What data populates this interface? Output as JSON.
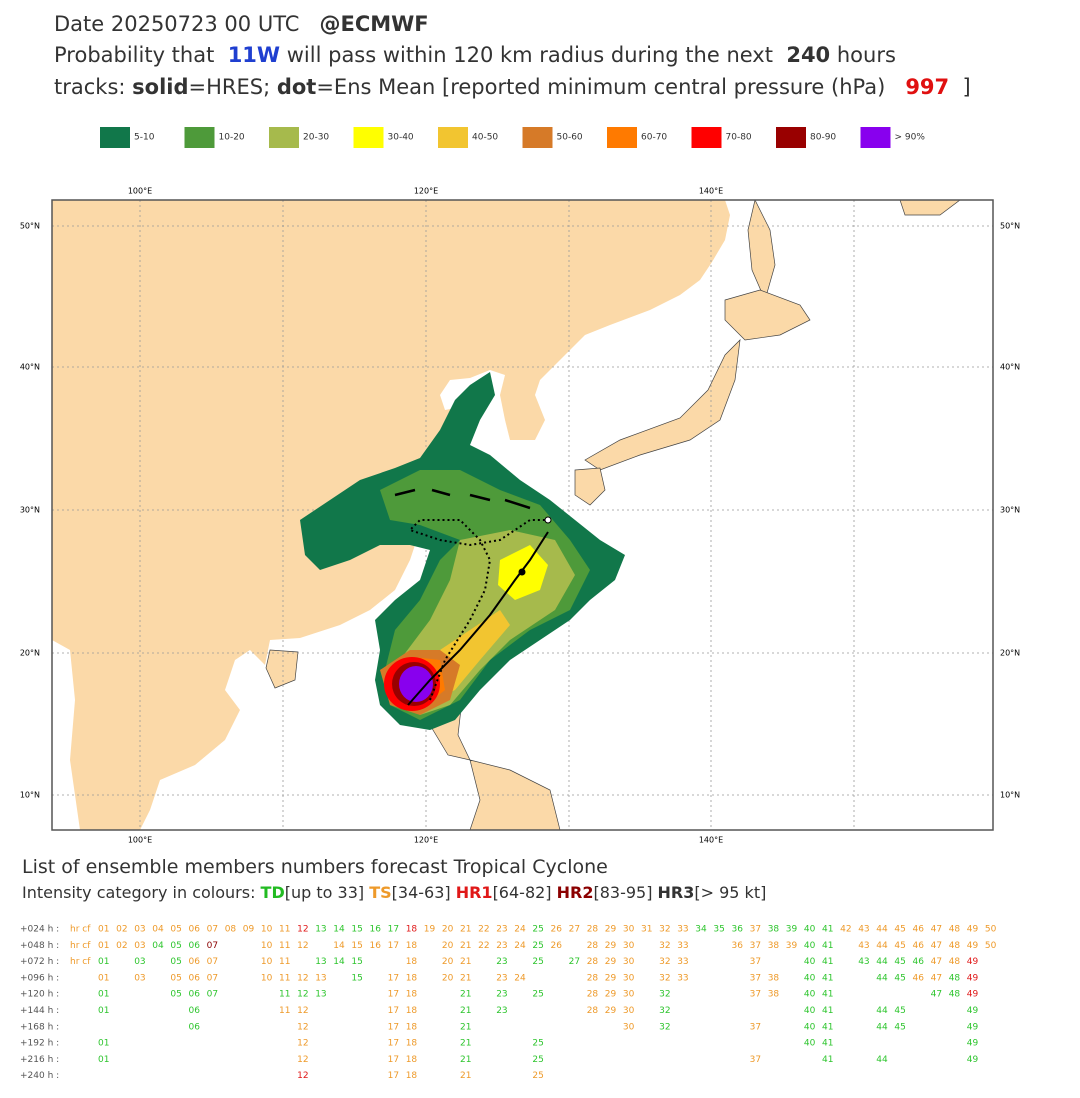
{
  "header": {
    "line1": [
      {
        "text": "Date 20250723 00 UTC   "
      },
      {
        "text": "@ECMWF",
        "bold": true
      }
    ],
    "line2": [
      {
        "text": "Probability that  "
      },
      {
        "text": "11W",
        "bold": true,
        "color": "#1f3fd0"
      },
      {
        "text": " will pass within 120 km radius during the next  "
      },
      {
        "text": "240",
        "bold": true
      },
      {
        "text": " hours"
      }
    ],
    "line3": [
      {
        "text": "tracks: "
      },
      {
        "text": "solid",
        "bold": true
      },
      {
        "text": "=HRES; "
      },
      {
        "text": "dot",
        "bold": true
      },
      {
        "text": "=Ens Mean [reported minimum central pressure (hPa)   "
      },
      {
        "text": "997",
        "bold": true,
        "color": "#e01010"
      },
      {
        "text": "  ]"
      }
    ]
  },
  "legend": [
    {
      "label": "5-10",
      "color": "#11774a"
    },
    {
      "label": "10-20",
      "color": "#4e9a3a"
    },
    {
      "label": "20-30",
      "color": "#a6ba4c"
    },
    {
      "label": "30-40",
      "color": "#ffff00"
    },
    {
      "label": "40-50",
      "color": "#f2c530"
    },
    {
      "label": "50-60",
      "color": "#d67a28"
    },
    {
      "label": "60-70",
      "color": "#ff7a00"
    },
    {
      "label": "70-80",
      "color": "#ff0000"
    },
    {
      "label": "80-90",
      "color": "#990000"
    },
    {
      "label": "> 90%",
      "color": "#8800ee"
    }
  ],
  "map": {
    "lon_labels": [
      "100°E",
      "120°E",
      "140°E"
    ],
    "lat_labels": [
      "50°N",
      "40°N",
      "30°N",
      "20°N",
      "10°N"
    ]
  },
  "members": {
    "title": "List of ensemble members numbers forecast Tropical Cyclone",
    "intensity": [
      {
        "text": "Intensity category in colours: "
      },
      {
        "text": "TD",
        "bold": true,
        "color": "#22bb22"
      },
      {
        "text": "[up to 33] "
      },
      {
        "text": "TS",
        "bold": true,
        "color": "#ee9a2a"
      },
      {
        "text": "[34-63] "
      },
      {
        "text": "HR1",
        "bold": true,
        "color": "#e01818"
      },
      {
        "text": "[64-82] "
      },
      {
        "text": "HR2",
        "bold": true,
        "color": "#8b0000"
      },
      {
        "text": "[83-95] "
      },
      {
        "text": "HR3",
        "bold": true
      },
      {
        "text": "[> 95 kt]"
      }
    ],
    "rows": [
      {
        "label": "+024 h :",
        "groups": [
          {
            "color": "#ee9a2a",
            "items": [
              "hr cf",
              "01",
              "02",
              "03",
              "04",
              "05",
              "06",
              "07",
              "08",
              "09",
              "10",
              "11",
              "19",
              "20",
              "21",
              "22",
              "23",
              "24",
              "26",
              "27",
              "28",
              "29",
              "30",
              "31",
              "32",
              "33",
              "37",
              "42",
              "43",
              "44",
              "45",
              "46",
              "47",
              "48",
              "49",
              "50"
            ]
          },
          {
            "color": "#2ec52e",
            "items": [
              "13",
              "14",
              "15",
              "16",
              "17",
              "25",
              "34",
              "35",
              "36",
              "38",
              "39",
              "40",
              "41"
            ]
          },
          {
            "color": "#e01818",
            "items": [
              "12",
              "18"
            ]
          }
        ]
      },
      {
        "label": "+048 h :",
        "groups": [
          {
            "color": "#ee9a2a",
            "items": [
              "hr cf",
              "01",
              "02",
              "03",
              "10",
              "11",
              "12",
              "14",
              "15",
              "16",
              "17",
              "18",
              "20",
              "21",
              "22",
              "23",
              "24",
              "26",
              "28",
              "29",
              "30",
              "32",
              "33",
              "36",
              "37",
              "38",
              "39",
              "43",
              "44",
              "45",
              "46",
              "47",
              "48",
              "49",
              "50"
            ]
          },
          {
            "color": "#2ec52e",
            "items": [
              "04",
              "05",
              "06",
              "25",
              "40",
              "41"
            ]
          },
          {
            "color": "#8b0000",
            "items": [
              "07"
            ]
          }
        ]
      },
      {
        "label": "+072 h :",
        "groups": [
          {
            "color": "#ee9a2a",
            "items": [
              "hr cf",
              "06",
              "07",
              "10",
              "11",
              "18",
              "20",
              "21",
              "28",
              "29",
              "30",
              "32",
              "33",
              "37",
              "47",
              "48"
            ]
          },
          {
            "color": "#2ec52e",
            "items": [
              "01",
              "03",
              "05",
              "13",
              "14",
              "15",
              "23",
              "25",
              "27",
              "40",
              "41",
              "43",
              "44",
              "45",
              "46"
            ]
          },
          {
            "color": "#e01818",
            "items": [
              "49"
            ]
          }
        ]
      },
      {
        "label": "+096 h :",
        "groups": [
          {
            "color": "#ee9a2a",
            "items": [
              "01",
              "03",
              "05",
              "06",
              "07",
              "10",
              "11",
              "12",
              "13",
              "17",
              "18",
              "20",
              "21",
              "23",
              "24",
              "28",
              "29",
              "30",
              "32",
              "33",
              "37",
              "38",
              "46",
              "47"
            ]
          },
          {
            "color": "#2ec52e",
            "items": [
              "15",
              "40",
              "41",
              "44",
              "45",
              "48"
            ]
          },
          {
            "color": "#e01818",
            "items": [
              "49"
            ]
          }
        ]
      },
      {
        "label": "+120 h :",
        "groups": [
          {
            "color": "#2ec52e",
            "items": [
              "01",
              "05",
              "06",
              "07",
              "11",
              "12",
              "13",
              "21",
              "23",
              "25",
              "32",
              "40",
              "41",
              "47",
              "48"
            ]
          },
          {
            "color": "#ee9a2a",
            "items": [
              "17",
              "18",
              "28",
              "29",
              "30",
              "37",
              "38"
            ]
          },
          {
            "color": "#e01818",
            "items": [
              "49"
            ]
          }
        ]
      },
      {
        "label": "+144 h :",
        "groups": [
          {
            "color": "#2ec52e",
            "items": [
              "01",
              "06",
              "21",
              "23",
              "32",
              "40",
              "41",
              "44",
              "45",
              "49"
            ]
          },
          {
            "color": "#ee9a2a",
            "items": [
              "11",
              "12",
              "17",
              "18",
              "28",
              "29",
              "30"
            ]
          }
        ]
      },
      {
        "label": "+168 h :",
        "groups": [
          {
            "color": "#2ec52e",
            "items": [
              "06",
              "21",
              "32",
              "40",
              "41",
              "44",
              "45",
              "49"
            ]
          },
          {
            "color": "#ee9a2a",
            "items": [
              "12",
              "17",
              "18",
              "30",
              "37"
            ]
          }
        ]
      },
      {
        "label": "+192 h :",
        "groups": [
          {
            "color": "#2ec52e",
            "items": [
              "01",
              "21",
              "25",
              "40",
              "41",
              "49"
            ]
          },
          {
            "color": "#ee9a2a",
            "items": [
              "12",
              "17",
              "18"
            ]
          }
        ]
      },
      {
        "label": "+216 h :",
        "groups": [
          {
            "color": "#2ec52e",
            "items": [
              "01",
              "21",
              "25",
              "41",
              "44",
              "49"
            ]
          },
          {
            "color": "#ee9a2a",
            "items": [
              "12",
              "17",
              "18",
              "37"
            ]
          }
        ]
      },
      {
        "label": "+240 h :",
        "groups": [
          {
            "color": "#e01818",
            "items": [
              "12"
            ]
          },
          {
            "color": "#ee9a2a",
            "items": [
              "17",
              "18",
              "21",
              "25"
            ]
          }
        ]
      }
    ]
  }
}
